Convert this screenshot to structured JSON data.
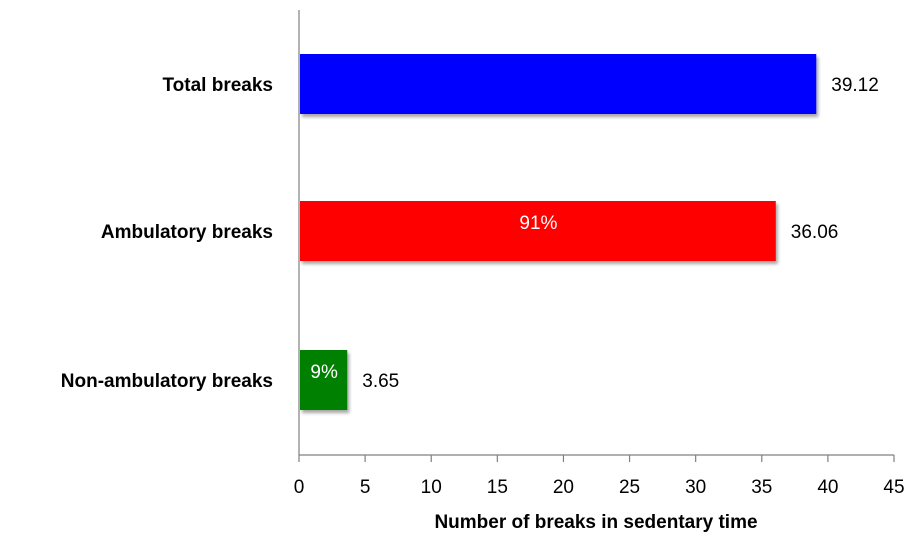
{
  "chart_data": {
    "type": "bar",
    "orientation": "horizontal",
    "categories": [
      "Total breaks",
      "Ambulatory breaks",
      "Non-ambulatory breaks"
    ],
    "values": [
      39.12,
      36.06,
      3.65
    ],
    "value_labels": [
      "39.12",
      "36.06",
      "3.65"
    ],
    "inside_labels": [
      "",
      "91%",
      "9%"
    ],
    "colors": [
      "#0000ff",
      "#ff0000",
      "#008000"
    ],
    "xlabel": "Number of breaks in sedentary time",
    "ylabel": "",
    "title": "",
    "xlim": [
      0,
      45
    ],
    "xticks": [
      0,
      5,
      10,
      15,
      20,
      25,
      30,
      35,
      40,
      45
    ],
    "grid": false,
    "legend": "none"
  }
}
